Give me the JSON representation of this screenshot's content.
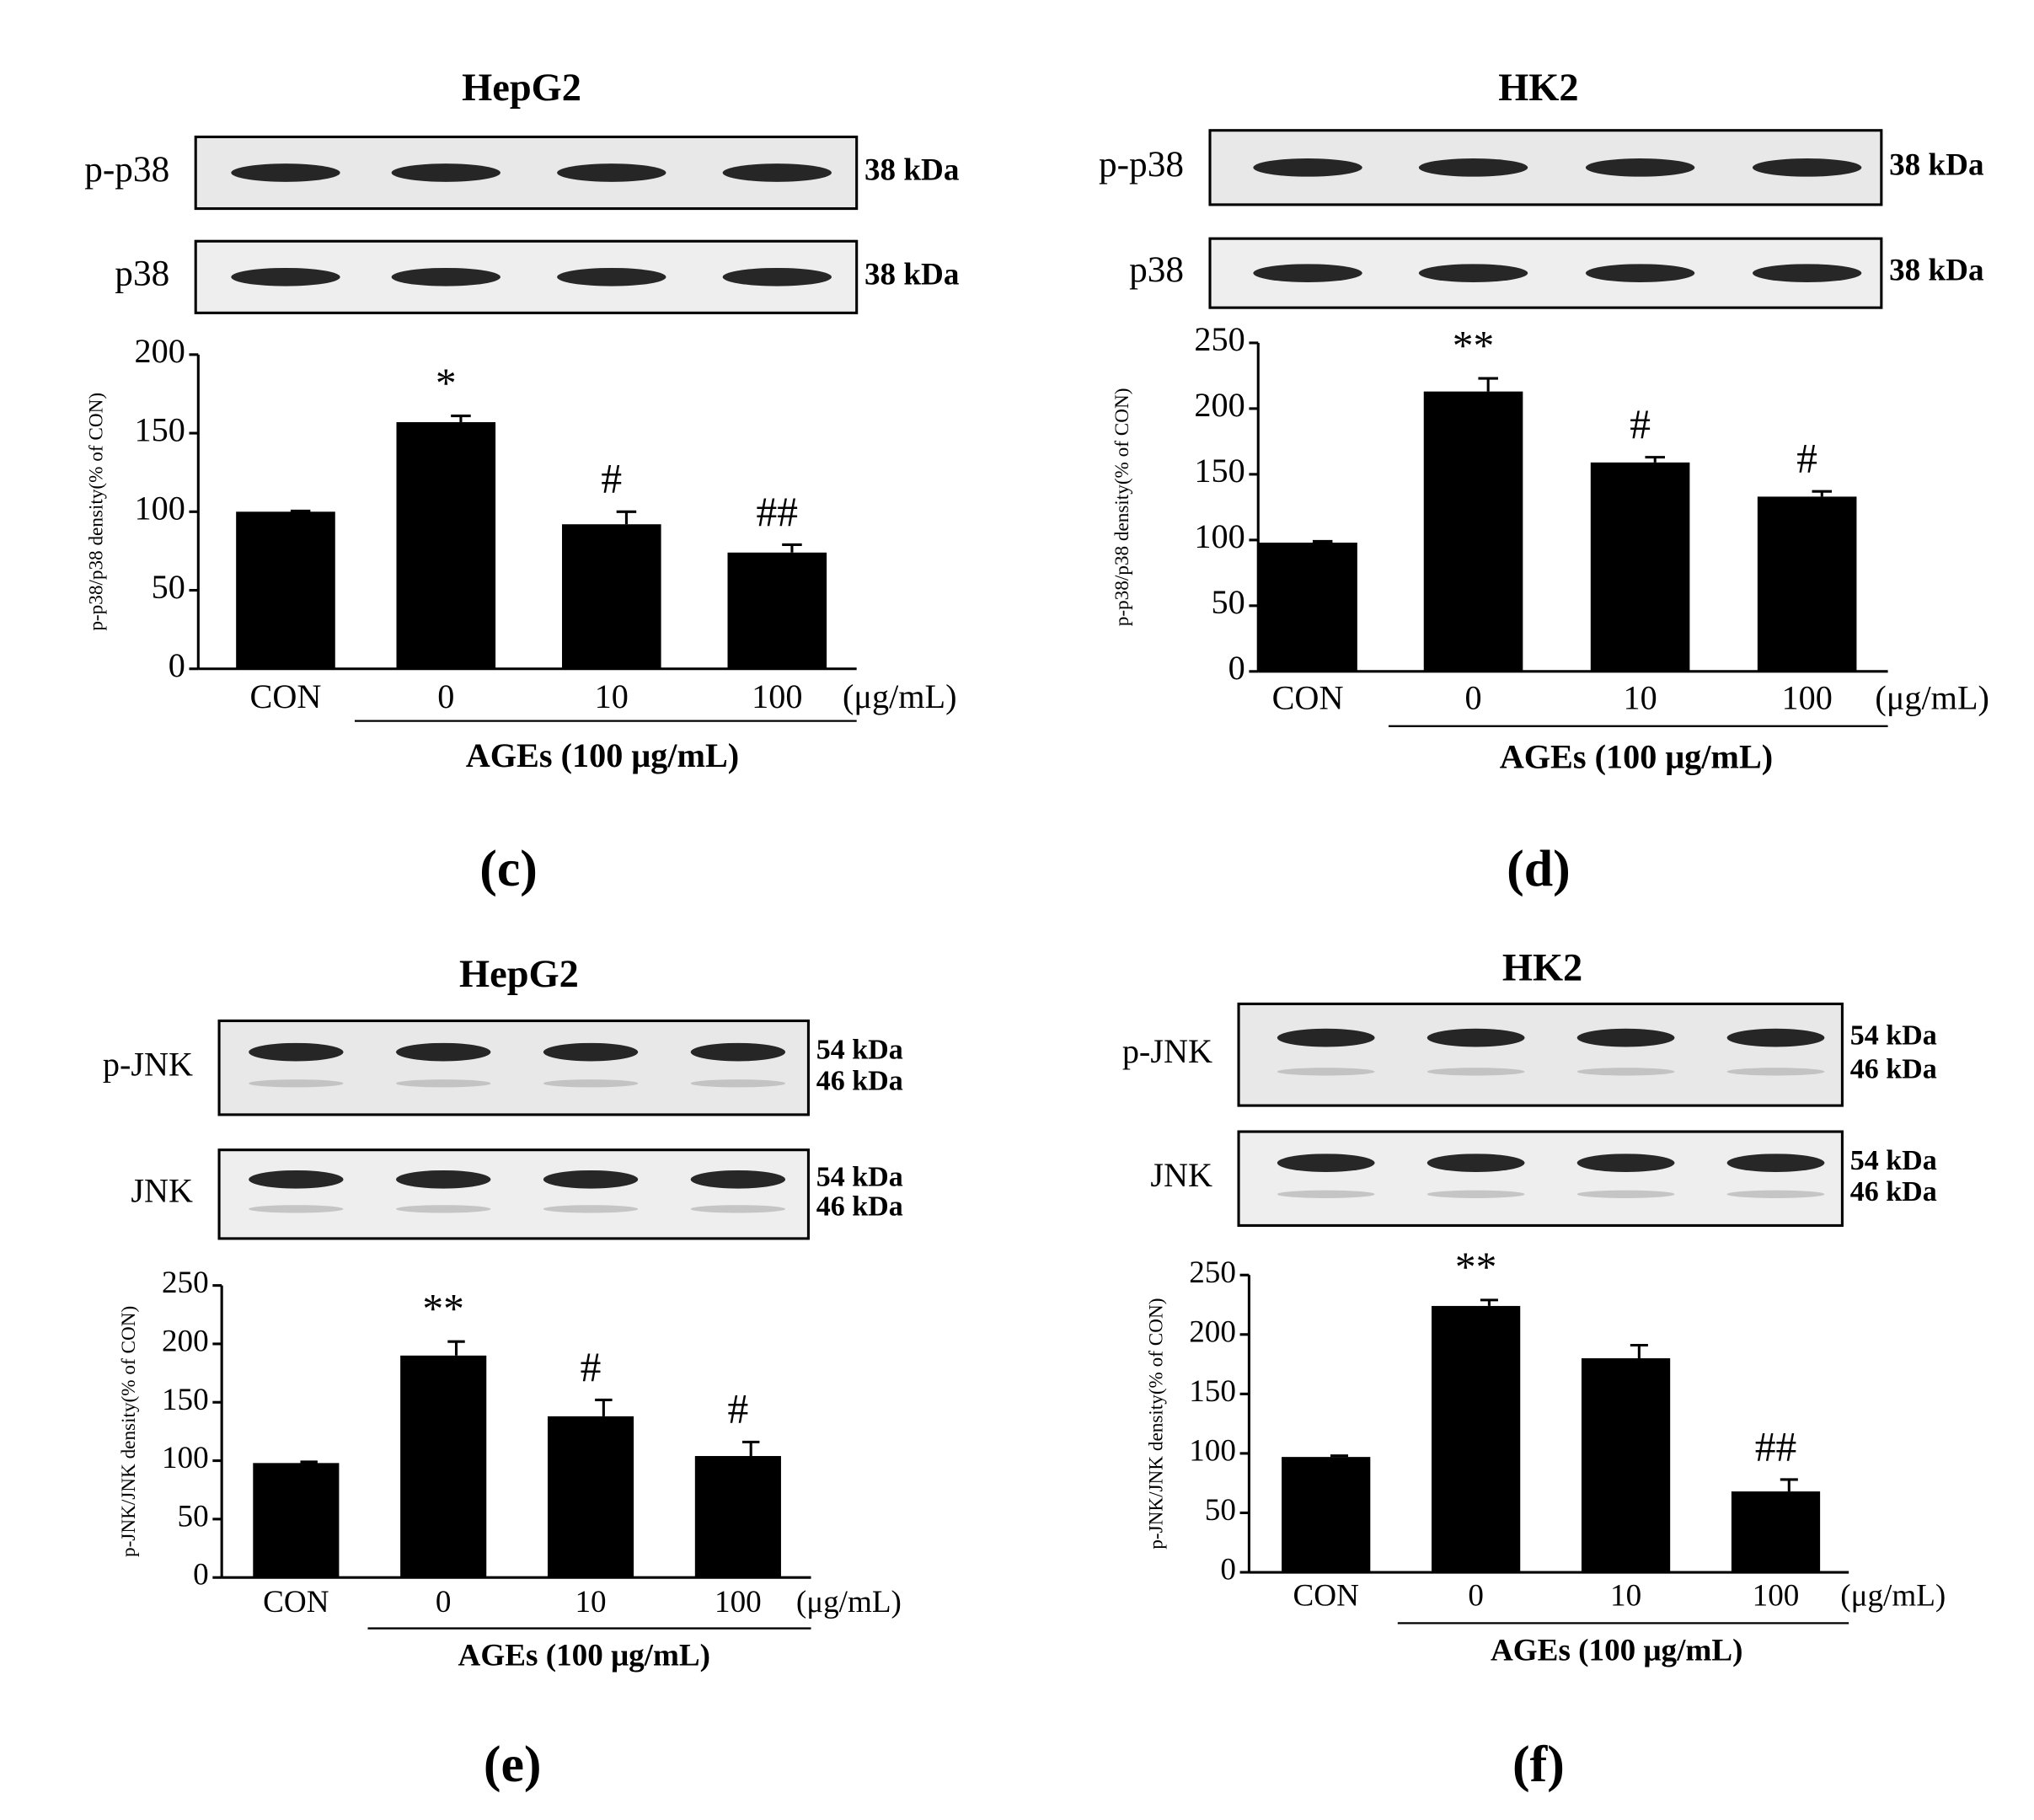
{
  "chart_data": [
    {
      "type": "bar",
      "title": "HepG2",
      "panel_label": "(c)",
      "blots": [
        {
          "label": "p-p38",
          "kda": [
            "38 kDa"
          ]
        },
        {
          "label": "p38",
          "kda": [
            "38 kDa"
          ]
        }
      ],
      "y_label": "p-p38/p38 density(% of CON)",
      "categories": [
        "CON",
        "0",
        "10",
        "100"
      ],
      "unit_label": "(μg/mL)",
      "group_label": "AGEs (100 μg/mL)",
      "values": [
        100,
        157,
        92,
        74
      ],
      "errors": [
        0.5,
        4,
        8,
        5
      ],
      "annotations": [
        null,
        "*",
        "#",
        "##"
      ],
      "color": "#000000",
      "ylim": [
        0,
        200
      ],
      "yticks": [
        0,
        50,
        100,
        150,
        200
      ]
    },
    {
      "type": "bar",
      "title": "HK2",
      "panel_label": "(d)",
      "blots": [
        {
          "label": "p-p38",
          "kda": [
            "38 kDa"
          ]
        },
        {
          "label": "p38",
          "kda": [
            "38 kDa"
          ]
        }
      ],
      "y_label": "p-p38/p38 density(% of CON)",
      "categories": [
        "CON",
        "0",
        "10",
        "100"
      ],
      "unit_label": "(μg/mL)",
      "group_label": "AGEs (100 μg/mL)",
      "values": [
        98,
        213,
        159,
        133
      ],
      "errors": [
        1,
        10,
        4,
        4
      ],
      "annotations": [
        null,
        "**",
        "#",
        "#"
      ],
      "color": "#000000",
      "ylim": [
        0,
        250
      ],
      "yticks": [
        0,
        50,
        100,
        150,
        200,
        250
      ]
    },
    {
      "type": "bar",
      "title": "HepG2",
      "panel_label": "(e)",
      "blots": [
        {
          "label": "p-JNK",
          "kda": [
            "54 kDa",
            "46 kDa"
          ]
        },
        {
          "label": "JNK",
          "kda": [
            "54 kDa",
            "46 kDa"
          ]
        }
      ],
      "y_label": "p-JNK/JNK density(% of CON)",
      "categories": [
        "CON",
        "0",
        "10",
        "100"
      ],
      "unit_label": "(μg/mL)",
      "group_label": "AGEs (100 μg/mL)",
      "values": [
        98,
        190,
        138,
        104
      ],
      "errors": [
        1,
        12,
        14,
        12
      ],
      "annotations": [
        null,
        "**",
        "#",
        "#"
      ],
      "color": "#000000",
      "ylim": [
        0,
        250
      ],
      "yticks": [
        0,
        50,
        100,
        150,
        200,
        250
      ]
    },
    {
      "type": "bar",
      "title": "HK2",
      "panel_label": "(f)",
      "blots": [
        {
          "label": "p-JNK",
          "kda": [
            "54 kDa",
            "46 kDa"
          ]
        },
        {
          "label": "JNK",
          "kda": [
            "54 kDa",
            "46 kDa"
          ]
        }
      ],
      "y_label": "p-JNK/JNK density(% of CON)",
      "categories": [
        "CON",
        "0",
        "10",
        "100"
      ],
      "unit_label": "(μg/mL)",
      "group_label": "AGEs (100 μg/mL)",
      "values": [
        97,
        224,
        180,
        68
      ],
      "errors": [
        1,
        5,
        11,
        10
      ],
      "annotations": [
        null,
        "**",
        null,
        "##"
      ],
      "color": "#000000",
      "ylim": [
        0,
        250
      ],
      "yticks": [
        0,
        50,
        100,
        150,
        200,
        250
      ]
    }
  ]
}
